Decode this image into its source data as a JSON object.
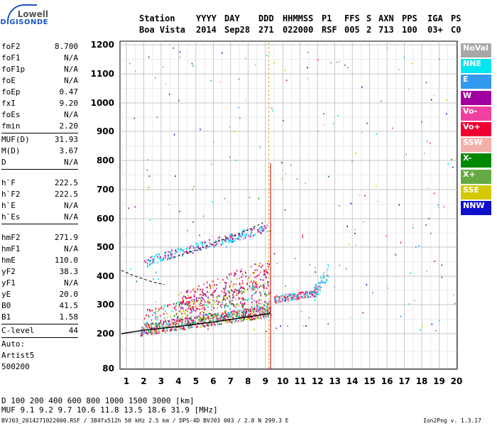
{
  "logo": {
    "line1": "Lowell",
    "line2": "DIGISONDE"
  },
  "header": {
    "labels": [
      "Station",
      "YYYY",
      "DAY",
      "DDD",
      "HHMMSS",
      "P1",
      "FFS",
      "S",
      "AXN",
      "PPS",
      "IGA",
      "PS"
    ],
    "values": [
      "Boa Vista",
      "2014",
      "Sep28",
      "271",
      "022000",
      "RSF",
      "005",
      "2",
      "713",
      "100",
      "03+",
      "C0"
    ]
  },
  "params": {
    "group1": [
      {
        "name": "foF2",
        "value": "8.700"
      },
      {
        "name": "foF1",
        "value": "N/A"
      },
      {
        "name": "foF1p",
        "value": "N/A"
      },
      {
        "name": "foE",
        "value": "N/A"
      },
      {
        "name": "foEp",
        "value": "0.47"
      },
      {
        "name": "fxI",
        "value": "9.20"
      },
      {
        "name": "foEs",
        "value": "N/A"
      },
      {
        "name": "fmin",
        "value": "2.20"
      }
    ],
    "group2": [
      {
        "name": "MUF(D)",
        "value": "31.93"
      },
      {
        "name": "M(D)",
        "value": "3.67"
      },
      {
        "name": "D",
        "value": "N/A"
      }
    ],
    "group3": [
      {
        "name": "h`F",
        "value": "222.5"
      },
      {
        "name": "h`F2",
        "value": "222.5"
      },
      {
        "name": "h`E",
        "value": "N/A"
      },
      {
        "name": "h`Es",
        "value": "N/A"
      }
    ],
    "group4": [
      {
        "name": "hmF2",
        "value": "271.9"
      },
      {
        "name": "hmF1",
        "value": "N/A"
      },
      {
        "name": "hmE",
        "value": "110.0"
      },
      {
        "name": "yF2",
        "value": "38.3"
      },
      {
        "name": "yF1",
        "value": "N/A"
      },
      {
        "name": "yE",
        "value": "20.0"
      },
      {
        "name": "B0",
        "value": "41.5"
      },
      {
        "name": "B1",
        "value": "1.58"
      }
    ],
    "group5": [
      {
        "name": "C-level",
        "value": "44"
      }
    ],
    "auto": [
      "Auto:",
      "Artist5",
      "500200"
    ]
  },
  "legend": [
    {
      "label": "NoVal",
      "color": "#a8a8a8"
    },
    {
      "label": "NNE",
      "color": "#00e5f0"
    },
    {
      "label": "E",
      "color": "#3399ee"
    },
    {
      "label": "W",
      "color": "#a000a0"
    },
    {
      "label": "Vo-",
      "color": "#f040a0"
    },
    {
      "label": "Vo+",
      "color": "#ee0033"
    },
    {
      "label": "SSW",
      "color": "#f4b0a8"
    },
    {
      "label": "X-",
      "color": "#008800"
    },
    {
      "label": "X+",
      "color": "#66aa44"
    },
    {
      "label": "SSE",
      "color": "#d4c800"
    },
    {
      "label": "NNW",
      "color": "#1010cc"
    }
  ],
  "chart_data": {
    "type": "scatter",
    "x_ticks": [
      "1",
      "2",
      "3",
      "4",
      "5",
      "6",
      "7",
      "8",
      "9",
      "10",
      "11",
      "12",
      "13",
      "14",
      "15",
      "16",
      "17",
      "18",
      "19",
      "20"
    ],
    "y_ticks": [
      "80",
      "200",
      "300",
      "400",
      "500",
      "600",
      "700",
      "800",
      "900",
      "1000",
      "1100",
      "1200"
    ],
    "xlim": [
      0.7,
      20.2
    ],
    "ylim": [
      80,
      1210
    ],
    "y_scale": "nonlinear (ionogram virtual height)",
    "grid": true,
    "series": [
      {
        "name": "NNE",
        "color": "#00e5f0",
        "x_range": [
          2,
          9
        ],
        "height_range": [
          450,
          580
        ]
      },
      {
        "name": "Vo+",
        "color": "#ee0033",
        "x_range": [
          1.8,
          12.5
        ],
        "height_range": [
          210,
          420
        ]
      },
      {
        "name": "Vo-",
        "color": "#f040a0",
        "x_range": [
          2.5,
          9.5
        ],
        "height_range": [
          220,
          600
        ]
      }
    ],
    "profile_curve": [
      [
        0.7,
        200
      ],
      [
        2,
        212
      ],
      [
        4,
        225
      ],
      [
        6,
        240
      ],
      [
        8,
        258
      ],
      [
        9.3,
        270
      ]
    ],
    "fo_marker_x": 9.2
  },
  "footer": {
    "d_label": "D",
    "d_values": [
      "100",
      "200",
      "400",
      "600",
      "800",
      "1000",
      "1500",
      "3000",
      "[km]"
    ],
    "muf_label": "MUF",
    "muf_values": [
      "9.1",
      "9.2",
      "9.7",
      "10.6",
      "11.8",
      "13.5",
      "18.6",
      "31.9",
      "[MHz]"
    ],
    "file_info": "BVJ03_2014271022000.RSF / 384fx512h 50 kHz 2.5 km / DPS-4D BVJ03 003 / 2.8 N 299.3 E",
    "version": "Ion2Png v. 1.3.17"
  }
}
